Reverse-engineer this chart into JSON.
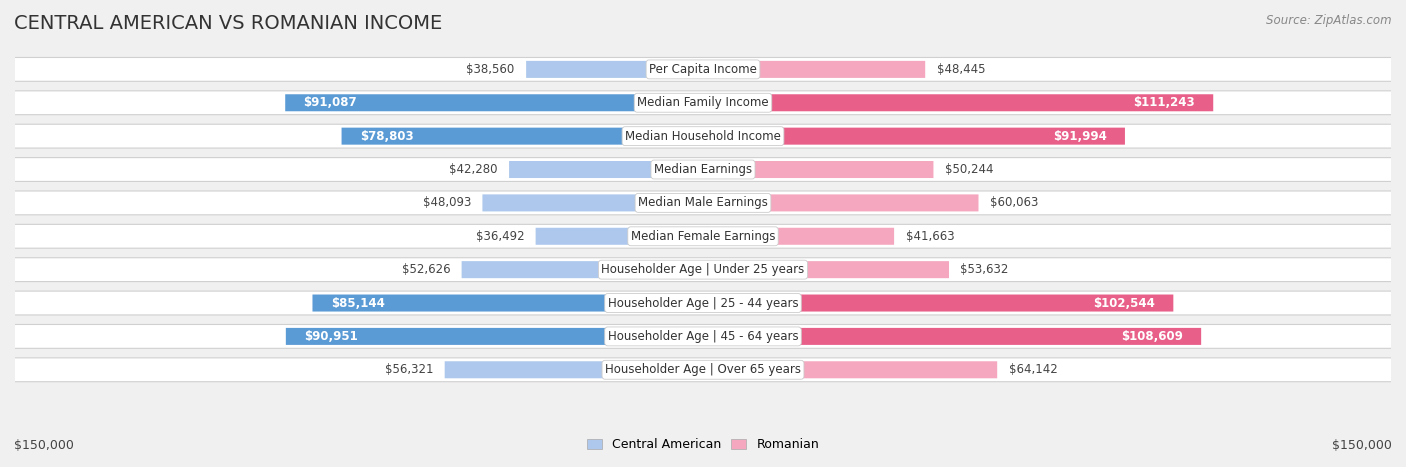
{
  "title": "CENTRAL AMERICAN VS ROMANIAN INCOME",
  "source": "Source: ZipAtlas.com",
  "categories": [
    "Per Capita Income",
    "Median Family Income",
    "Median Household Income",
    "Median Earnings",
    "Median Male Earnings",
    "Median Female Earnings",
    "Householder Age | Under 25 years",
    "Householder Age | 25 - 44 years",
    "Householder Age | 45 - 64 years",
    "Householder Age | Over 65 years"
  ],
  "central_american": [
    38560,
    91087,
    78803,
    42280,
    48093,
    36492,
    52626,
    85144,
    90951,
    56321
  ],
  "romanian": [
    48445,
    111243,
    91994,
    50244,
    60063,
    41663,
    53632,
    102544,
    108609,
    64142
  ],
  "central_american_labels": [
    "$38,560",
    "$91,087",
    "$78,803",
    "$42,280",
    "$48,093",
    "$36,492",
    "$52,626",
    "$85,144",
    "$90,951",
    "$56,321"
  ],
  "romanian_labels": [
    "$48,445",
    "$111,243",
    "$91,994",
    "$50,244",
    "$60,063",
    "$41,663",
    "$53,632",
    "$102,544",
    "$108,609",
    "$64,142"
  ],
  "max_val": 150000,
  "blue_light": "#adc8ec",
  "blue_dark": "#5b9bd5",
  "pink_light": "#f4a7be",
  "pink_dark": "#e8608a",
  "bg_color": "#f0f0f0",
  "large_threshold": 70000,
  "label_fontsize": 8.5,
  "title_fontsize": 14,
  "source_fontsize": 8.5
}
